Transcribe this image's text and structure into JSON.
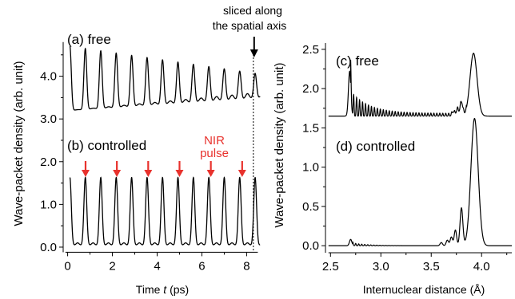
{
  "chart_data": [
    {
      "type": "line",
      "panel": "left",
      "x_quantity": "Time",
      "x_symbol": "t",
      "x_unit": "(ps)",
      "ylabel": "Wave-packet density (arb. unit)",
      "xlim": [
        -0.2,
        8.7
      ],
      "ylim": [
        -0.15,
        5.0
      ],
      "x_ticks": [
        0,
        2,
        4,
        6,
        8
      ],
      "y_ticks": [
        0.0,
        1.0,
        2.0,
        3.0,
        4.0
      ],
      "y_tick_labels": [
        "0.0",
        "1.0",
        "2.0",
        "3.0",
        "4.0"
      ],
      "x_tick_labels": [
        "0",
        "2",
        "4",
        "6",
        "8"
      ],
      "series": [
        {
          "name": "(a) free",
          "label": "(a) free",
          "t_start": 0.1,
          "t_end": 8.6,
          "period_ps": 0.69,
          "baseline_start": 3.2,
          "peak_start": 4.7,
          "baseline_end": 3.5,
          "peak_end": 4.05
        },
        {
          "name": "(b) controlled",
          "label": "(b) controlled",
          "t_start": 0.1,
          "t_end": 8.6,
          "period_ps": 0.69,
          "baseline": 0.05,
          "peak": 1.63
        }
      ],
      "pulse_label_line1": "NIR",
      "pulse_label_line2": "pulse",
      "pulse_times_ps": [
        0.8,
        2.2,
        3.6,
        5.0,
        6.4,
        7.8
      ],
      "pulse_color": "#e8322d",
      "slice_time_ps": 8.3,
      "slice_label_line1": "sliced along",
      "slice_label_line2": "the spatial axis"
    },
    {
      "type": "line",
      "panel": "right",
      "xlabel": "Internuclear distance (Å)",
      "ylabel": "Wave-packet density (arb. unit)",
      "xlim": [
        2.45,
        4.3
      ],
      "ylim": [
        -0.1,
        2.6
      ],
      "x_ticks": [
        2.5,
        3.0,
        3.5,
        4.0
      ],
      "x_tick_labels": [
        "2.5",
        "3.0",
        "3.5",
        "4.0"
      ],
      "y_ticks": [
        0.0,
        0.5,
        1.0,
        1.5,
        2.0,
        2.5
      ],
      "y_tick_labels": [
        "0.0",
        "0.5",
        "1.0",
        "1.5",
        "2.0",
        "2.5"
      ],
      "series": [
        {
          "name": "(c) free",
          "label": "(c) free",
          "baseline": 1.65,
          "peaks": [
            {
              "x": 2.69,
              "y": 2.22
            },
            {
              "x": 3.8,
              "y": 1.82
            },
            {
              "x": 3.92,
              "y": 2.45
            }
          ]
        },
        {
          "name": "(d) controlled",
          "label": "(d) controlled",
          "baseline": 0.0,
          "peaks": [
            {
              "x": 2.7,
              "y": 0.08
            },
            {
              "x": 3.8,
              "y": 0.48
            },
            {
              "x": 3.93,
              "y": 1.62
            }
          ]
        }
      ]
    }
  ]
}
